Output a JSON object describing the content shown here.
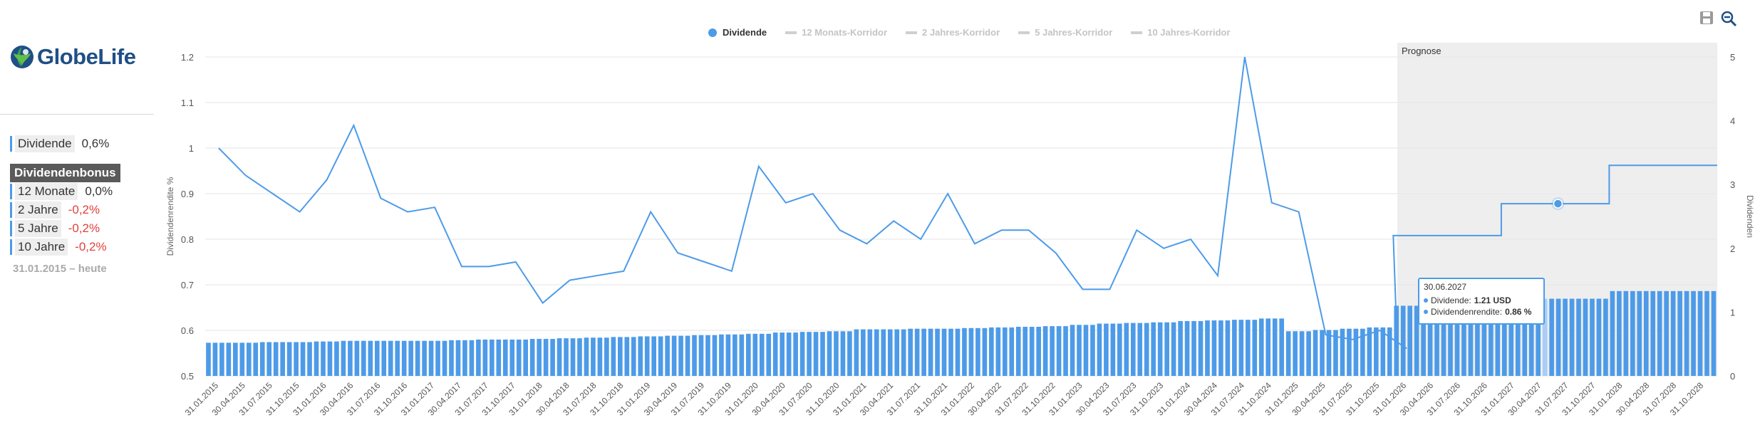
{
  "company": {
    "name": "GlobeLife"
  },
  "sidebar": {
    "dividend_label": "Dividende",
    "dividend_value": "0,6%",
    "bonus_heading": "Dividendenbonus",
    "rows": [
      {
        "label": "12 Monate",
        "value": "0,0%"
      },
      {
        "label": "2 Jahre",
        "value": "-0,2%"
      },
      {
        "label": "5 Jahre",
        "value": "-0,2%"
      },
      {
        "label": "10 Jahre",
        "value": "-0,2%"
      }
    ],
    "range": "31.01.2015 – heute"
  },
  "legend": [
    {
      "label": "Dividende",
      "active": true
    },
    {
      "label": "12 Monats-Korridor",
      "active": false
    },
    {
      "label": "2 Jahres-Korridor",
      "active": false
    },
    {
      "label": "5 Jahres-Korridor",
      "active": false
    },
    {
      "label": "10 Jahres-Korridor",
      "active": false
    }
  ],
  "tools": {
    "save_icon": "save-icon",
    "zoom_icon": "zoom-out-icon"
  },
  "tooltip": {
    "date": "30.06.2027",
    "dividend_label": "Dividende:",
    "dividend_value": "1.21 USD",
    "yield_label": "Dividendenrendite:",
    "yield_value": "0.86 %"
  },
  "colors": {
    "accent": "#4d9be8",
    "negative": "#e0413c",
    "forecast_bg": "#eeeeee"
  },
  "chart_data": {
    "type": "bar",
    "forecast_label": "Prognose",
    "left_axis": {
      "label": "Dividendenrendite %",
      "ticks": [
        "0.5",
        "0.6",
        "0.7",
        "0.8",
        "0.9",
        "1",
        "1.1",
        "1.2"
      ],
      "range": [
        0.5,
        1.2
      ]
    },
    "right_axis": {
      "label": "Dividenden",
      "ticks": [
        "0",
        "1",
        "2",
        "3",
        "4",
        "5"
      ],
      "range": [
        0,
        5
      ]
    },
    "x_labels": [
      "31.01.2015",
      "30.04.2015",
      "31.07.2015",
      "31.10.2015",
      "31.01.2016",
      "30.04.2016",
      "31.07.2016",
      "31.10.2016",
      "31.01.2017",
      "30.04.2017",
      "31.07.2017",
      "31.10.2017",
      "31.01.2018",
      "30.04.2018",
      "31.07.2018",
      "31.10.2018",
      "31.01.2019",
      "30.04.2019",
      "31.07.2019",
      "31.10.2019",
      "31.01.2020",
      "30.04.2020",
      "31.07.2020",
      "31.10.2020",
      "31.01.2021",
      "30.04.2021",
      "31.07.2021",
      "31.10.2021",
      "31.01.2022",
      "30.04.2022",
      "31.07.2022",
      "31.10.2022",
      "31.01.2023",
      "30.04.2023",
      "31.07.2023",
      "31.10.2023",
      "31.01.2024",
      "30.04.2024",
      "31.07.2024",
      "31.10.2024",
      "31.01.2025",
      "30.04.2025",
      "31.07.2025",
      "31.10.2025",
      "31.01.2026",
      "30.04.2026",
      "31.07.2026",
      "31.10.2026",
      "31.01.2027",
      "30.04.2027",
      "31.07.2027",
      "31.10.2027",
      "31.01.2028",
      "30.04.2028",
      "31.07.2028",
      "31.10.2028"
    ],
    "series": [
      {
        "name": "Dividende",
        "axis": "right",
        "style": "bars",
        "values": [
          0.52,
          0.52,
          0.53,
          0.53,
          0.54,
          0.55,
          0.55,
          0.55,
          0.55,
          0.56,
          0.57,
          0.57,
          0.58,
          0.59,
          0.6,
          0.61,
          0.62,
          0.63,
          0.64,
          0.65,
          0.66,
          0.68,
          0.69,
          0.7,
          0.73,
          0.73,
          0.74,
          0.74,
          0.75,
          0.76,
          0.77,
          0.78,
          0.8,
          0.82,
          0.83,
          0.84,
          0.86,
          0.87,
          0.88,
          0.9,
          0.7,
          0.72,
          0.74,
          0.76,
          1.1,
          1.1,
          1.1,
          1.1,
          1.21,
          1.21,
          1.21,
          1.21,
          1.33,
          1.33,
          1.33,
          1.33
        ]
      },
      {
        "name": "Dividende",
        "axis": "right",
        "style": "step",
        "values": [
          2.2,
          2.2,
          2.2,
          2.2,
          2.7,
          2.7,
          2.7,
          2.7,
          3.3,
          3.3,
          3.3,
          3.3
        ]
      },
      {
        "name": "Dividendenrendite",
        "axis": "left",
        "style": "line",
        "values": [
          1.0,
          0.94,
          0.9,
          0.86,
          0.93,
          1.05,
          0.89,
          0.86,
          0.87,
          0.74,
          0.74,
          0.75,
          0.66,
          0.71,
          0.72,
          0.73,
          0.86,
          0.77,
          0.75,
          0.73,
          0.96,
          0.88,
          0.9,
          0.82,
          0.79,
          0.84,
          0.8,
          0.9,
          0.79,
          0.82,
          0.82,
          0.77,
          0.69,
          0.69,
          0.82,
          0.78,
          0.8,
          0.72,
          1.2,
          0.88,
          0.86,
          0.59,
          0.58,
          0.6,
          0.56
        ]
      }
    ],
    "highlight_point": {
      "date": "30.06.2027",
      "value": 1.21
    }
  }
}
